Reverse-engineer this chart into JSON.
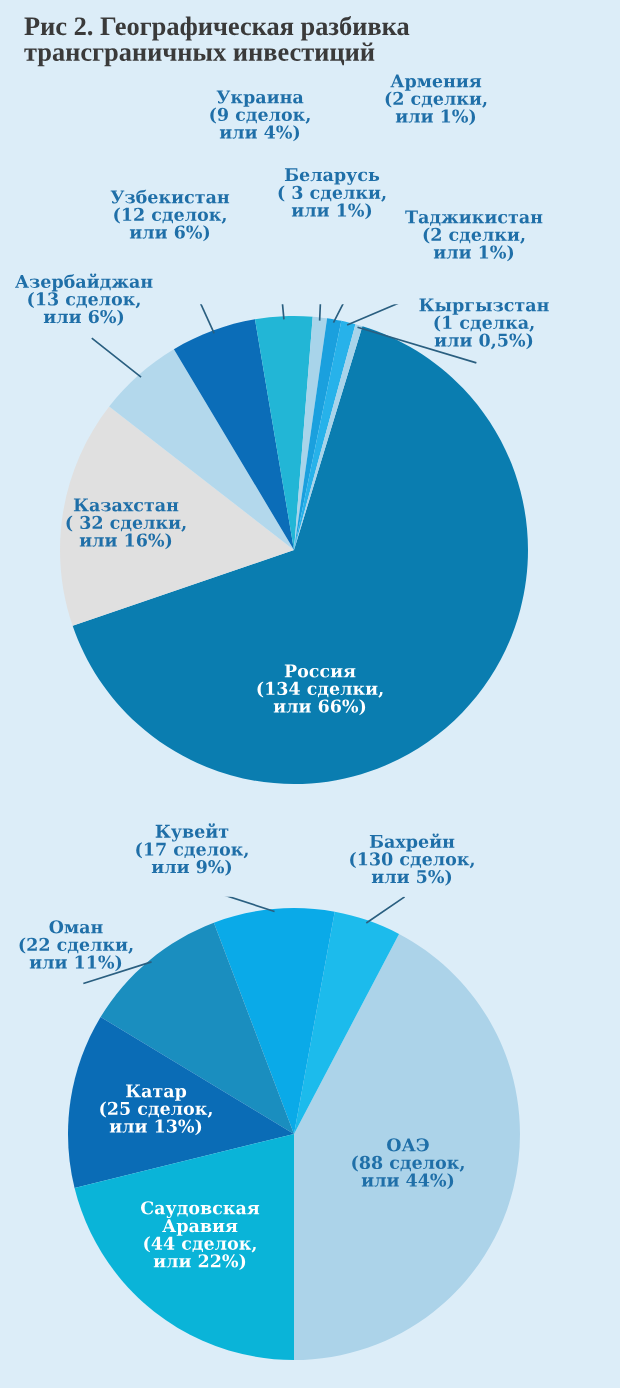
{
  "chart_data": [
    {
      "type": "pie",
      "title": "Рис 2. Географическая разбивка\nтрансграничных инвестиций",
      "categories": [
        "Россия",
        "Казахстан",
        "Азербайджан",
        "Узбекистан",
        "Украина",
        "Беларусь",
        "Армения",
        "Таджикистан",
        "Кыргызстан"
      ],
      "values": [
        66,
        16,
        6,
        6,
        4,
        1,
        1,
        1,
        0.5
      ],
      "colors": [
        "#0a7db0",
        "#e0e0e0",
        "#b3d8ec",
        "#0b6db8",
        "#22b6d6",
        "#a8d4ea",
        "#1aa0de",
        "#27b2ea",
        "#a8d4ea"
      ],
      "value_labels": [
        "(134 сделки,\nили 66%)",
        "( 32 сделки,\nили 16%)",
        "(13 сделок,\nили 6%)",
        "(12 сделок,\nили 6%)",
        "(9 сделок,\nили 4%)",
        "( 3 сделки,\nили 1%)",
        "(2 сделки,\nили 1%)",
        "(2 сделки,\nили 1%)",
        "(1 сделка,\nили 0,5%)"
      ]
    },
    {
      "type": "pie",
      "categories": [
        "ОАЭ",
        "Бахрейн",
        "Кувейт",
        "Оман",
        "Катар",
        "Саудовская\nАравия"
      ],
      "values": [
        44,
        5,
        9,
        11,
        13,
        22
      ],
      "colors": [
        "#acd3e9",
        "#1cbbec",
        "#0aaae8",
        "#1a8ebf",
        "#0a6cb6",
        "#0ab4d8"
      ],
      "value_labels": [
        "(88 сделок,\nили 44%)",
        "(130 сделок,\nили 5%)",
        "(17 сделок,\nили 9%)",
        "(22 сделки,\nили 11%)",
        "(25 сделок,\nили 13%)",
        "(44 сделок,\nили 22%)"
      ]
    }
  ]
}
